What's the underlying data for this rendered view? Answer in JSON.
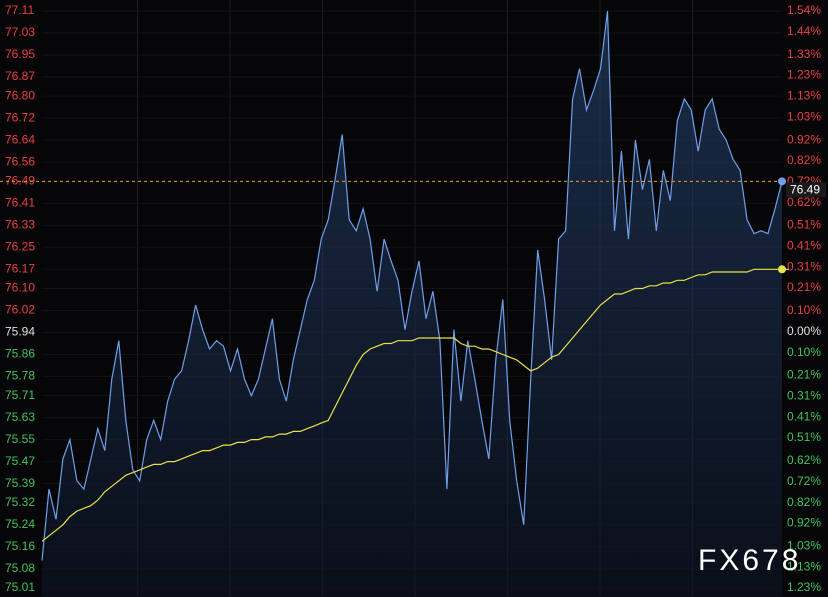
{
  "chart_data": {
    "type": "line",
    "series": [
      {
        "color": "#6f9fe8",
        "values": [
          75.11,
          75.37,
          75.26,
          75.48,
          75.55,
          75.4,
          75.37,
          75.48,
          75.59,
          75.51,
          75.77,
          75.91,
          75.62,
          75.44,
          75.4,
          75.55,
          75.62,
          75.55,
          75.69,
          75.77,
          75.8,
          75.91,
          76.04,
          75.95,
          75.88,
          75.91,
          75.89,
          75.8,
          75.88,
          75.77,
          75.71,
          75.77,
          75.88,
          75.99,
          75.77,
          75.69,
          75.84,
          75.95,
          76.06,
          76.13,
          76.28,
          76.35,
          76.5,
          76.66,
          76.35,
          76.31,
          76.39,
          76.28,
          76.09,
          76.28,
          76.2,
          76.13,
          75.95,
          76.09,
          76.2,
          75.99,
          76.09,
          75.91,
          75.37,
          75.95,
          75.69,
          75.91,
          75.77,
          75.62,
          75.48,
          75.84,
          76.06,
          75.62,
          75.4,
          75.24,
          75.77,
          76.24,
          76.06,
          75.84,
          76.28,
          76.31,
          76.79,
          76.9,
          76.75,
          76.82,
          76.9,
          77.11,
          76.31,
          76.6,
          76.28,
          76.64,
          76.46,
          76.57,
          76.31,
          76.53,
          76.42,
          76.71,
          76.79,
          76.75,
          76.6,
          76.75,
          76.79,
          76.68,
          76.64,
          76.57,
          76.53,
          76.35,
          76.3,
          76.31,
          76.3,
          76.39,
          76.49
        ]
      },
      {
        "color": "#e8e04a",
        "values": [
          75.18,
          75.2,
          75.22,
          75.24,
          75.27,
          75.29,
          75.3,
          75.31,
          75.33,
          75.36,
          75.38,
          75.4,
          75.42,
          75.43,
          75.44,
          75.45,
          75.46,
          75.46,
          75.47,
          75.47,
          75.48,
          75.49,
          75.5,
          75.51,
          75.51,
          75.52,
          75.53,
          75.53,
          75.54,
          75.54,
          75.55,
          75.55,
          75.56,
          75.56,
          75.57,
          75.57,
          75.58,
          75.58,
          75.59,
          75.6,
          75.61,
          75.62,
          75.67,
          75.72,
          75.77,
          75.82,
          75.86,
          75.88,
          75.89,
          75.9,
          75.9,
          75.91,
          75.91,
          75.91,
          75.92,
          75.92,
          75.92,
          75.92,
          75.92,
          75.92,
          75.9,
          75.89,
          75.89,
          75.88,
          75.88,
          75.87,
          75.86,
          75.85,
          75.84,
          75.82,
          75.8,
          75.81,
          75.83,
          75.85,
          75.86,
          75.89,
          75.92,
          75.95,
          75.98,
          76.01,
          76.04,
          76.06,
          76.08,
          76.08,
          76.09,
          76.1,
          76.1,
          76.11,
          76.11,
          76.12,
          76.12,
          76.13,
          76.13,
          76.14,
          76.15,
          76.15,
          76.16,
          76.16,
          76.16,
          76.16,
          76.16,
          76.16,
          76.17,
          76.17,
          76.17,
          76.17,
          76.17,
          76.17
        ]
      }
    ],
    "ylim": [
      75.01,
      77.11
    ],
    "yticks": [
      77.11,
      77.03,
      76.95,
      76.87,
      {
        "value": 76.8,
        "label": "76.80"
      },
      76.72,
      76.64,
      76.56,
      76.49,
      76.41,
      76.33,
      76.25,
      76.17,
      {
        "value": 76.1,
        "label": "76.10"
      },
      76.02,
      75.94,
      75.86,
      75.78,
      75.71,
      75.63,
      75.55,
      75.47,
      75.39,
      75.32,
      75.24,
      75.16,
      75.08,
      75.01
    ],
    "y2lim": [
      -1.23,
      1.54
    ],
    "y2ticks": [
      {
        "value": 1.54,
        "label": "1.54%"
      },
      {
        "value": 1.44,
        "label": "1.44%"
      },
      {
        "value": 1.33,
        "label": "1.33%"
      },
      {
        "value": 1.23,
        "label": "1.23%"
      },
      {
        "value": 1.13,
        "label": "1.13%"
      },
      {
        "value": 1.03,
        "label": "1.03%"
      },
      {
        "value": 0.92,
        "label": "0.92%"
      },
      {
        "value": 0.82,
        "label": "0.82%"
      },
      {
        "value": 0.72,
        "label": "0.72%"
      },
      {
        "value": 0.62,
        "label": "0.62%"
      },
      {
        "value": 0.51,
        "label": "0.51%"
      },
      {
        "value": 0.41,
        "label": "0.41%"
      },
      {
        "value": 0.31,
        "label": "0.31%"
      },
      {
        "value": 0.21,
        "label": "0.21%"
      },
      {
        "value": 0.1,
        "label": "0.10%"
      },
      {
        "value": 0,
        "label": "0.00%"
      },
      {
        "value": -0.1,
        "label": "0.10%"
      },
      {
        "value": -0.21,
        "label": "0.21%"
      },
      {
        "value": -0.31,
        "label": "0.31%"
      },
      {
        "value": -0.41,
        "label": "0.41%"
      },
      {
        "value": -0.51,
        "label": "0.51%"
      },
      {
        "value": -0.62,
        "label": "0.62%"
      },
      {
        "value": -0.72,
        "label": "0.72%"
      },
      {
        "value": -0.82,
        "label": "0.82%"
      },
      {
        "value": -0.92,
        "label": "0.92%"
      },
      {
        "value": -1.03,
        "label": "1.03%"
      },
      {
        "value": -1.13,
        "label": "1.13%"
      },
      {
        "value": -1.23,
        "label": "1.23%"
      }
    ],
    "last_price_label": "76.49",
    "watermark": "FX678"
  }
}
